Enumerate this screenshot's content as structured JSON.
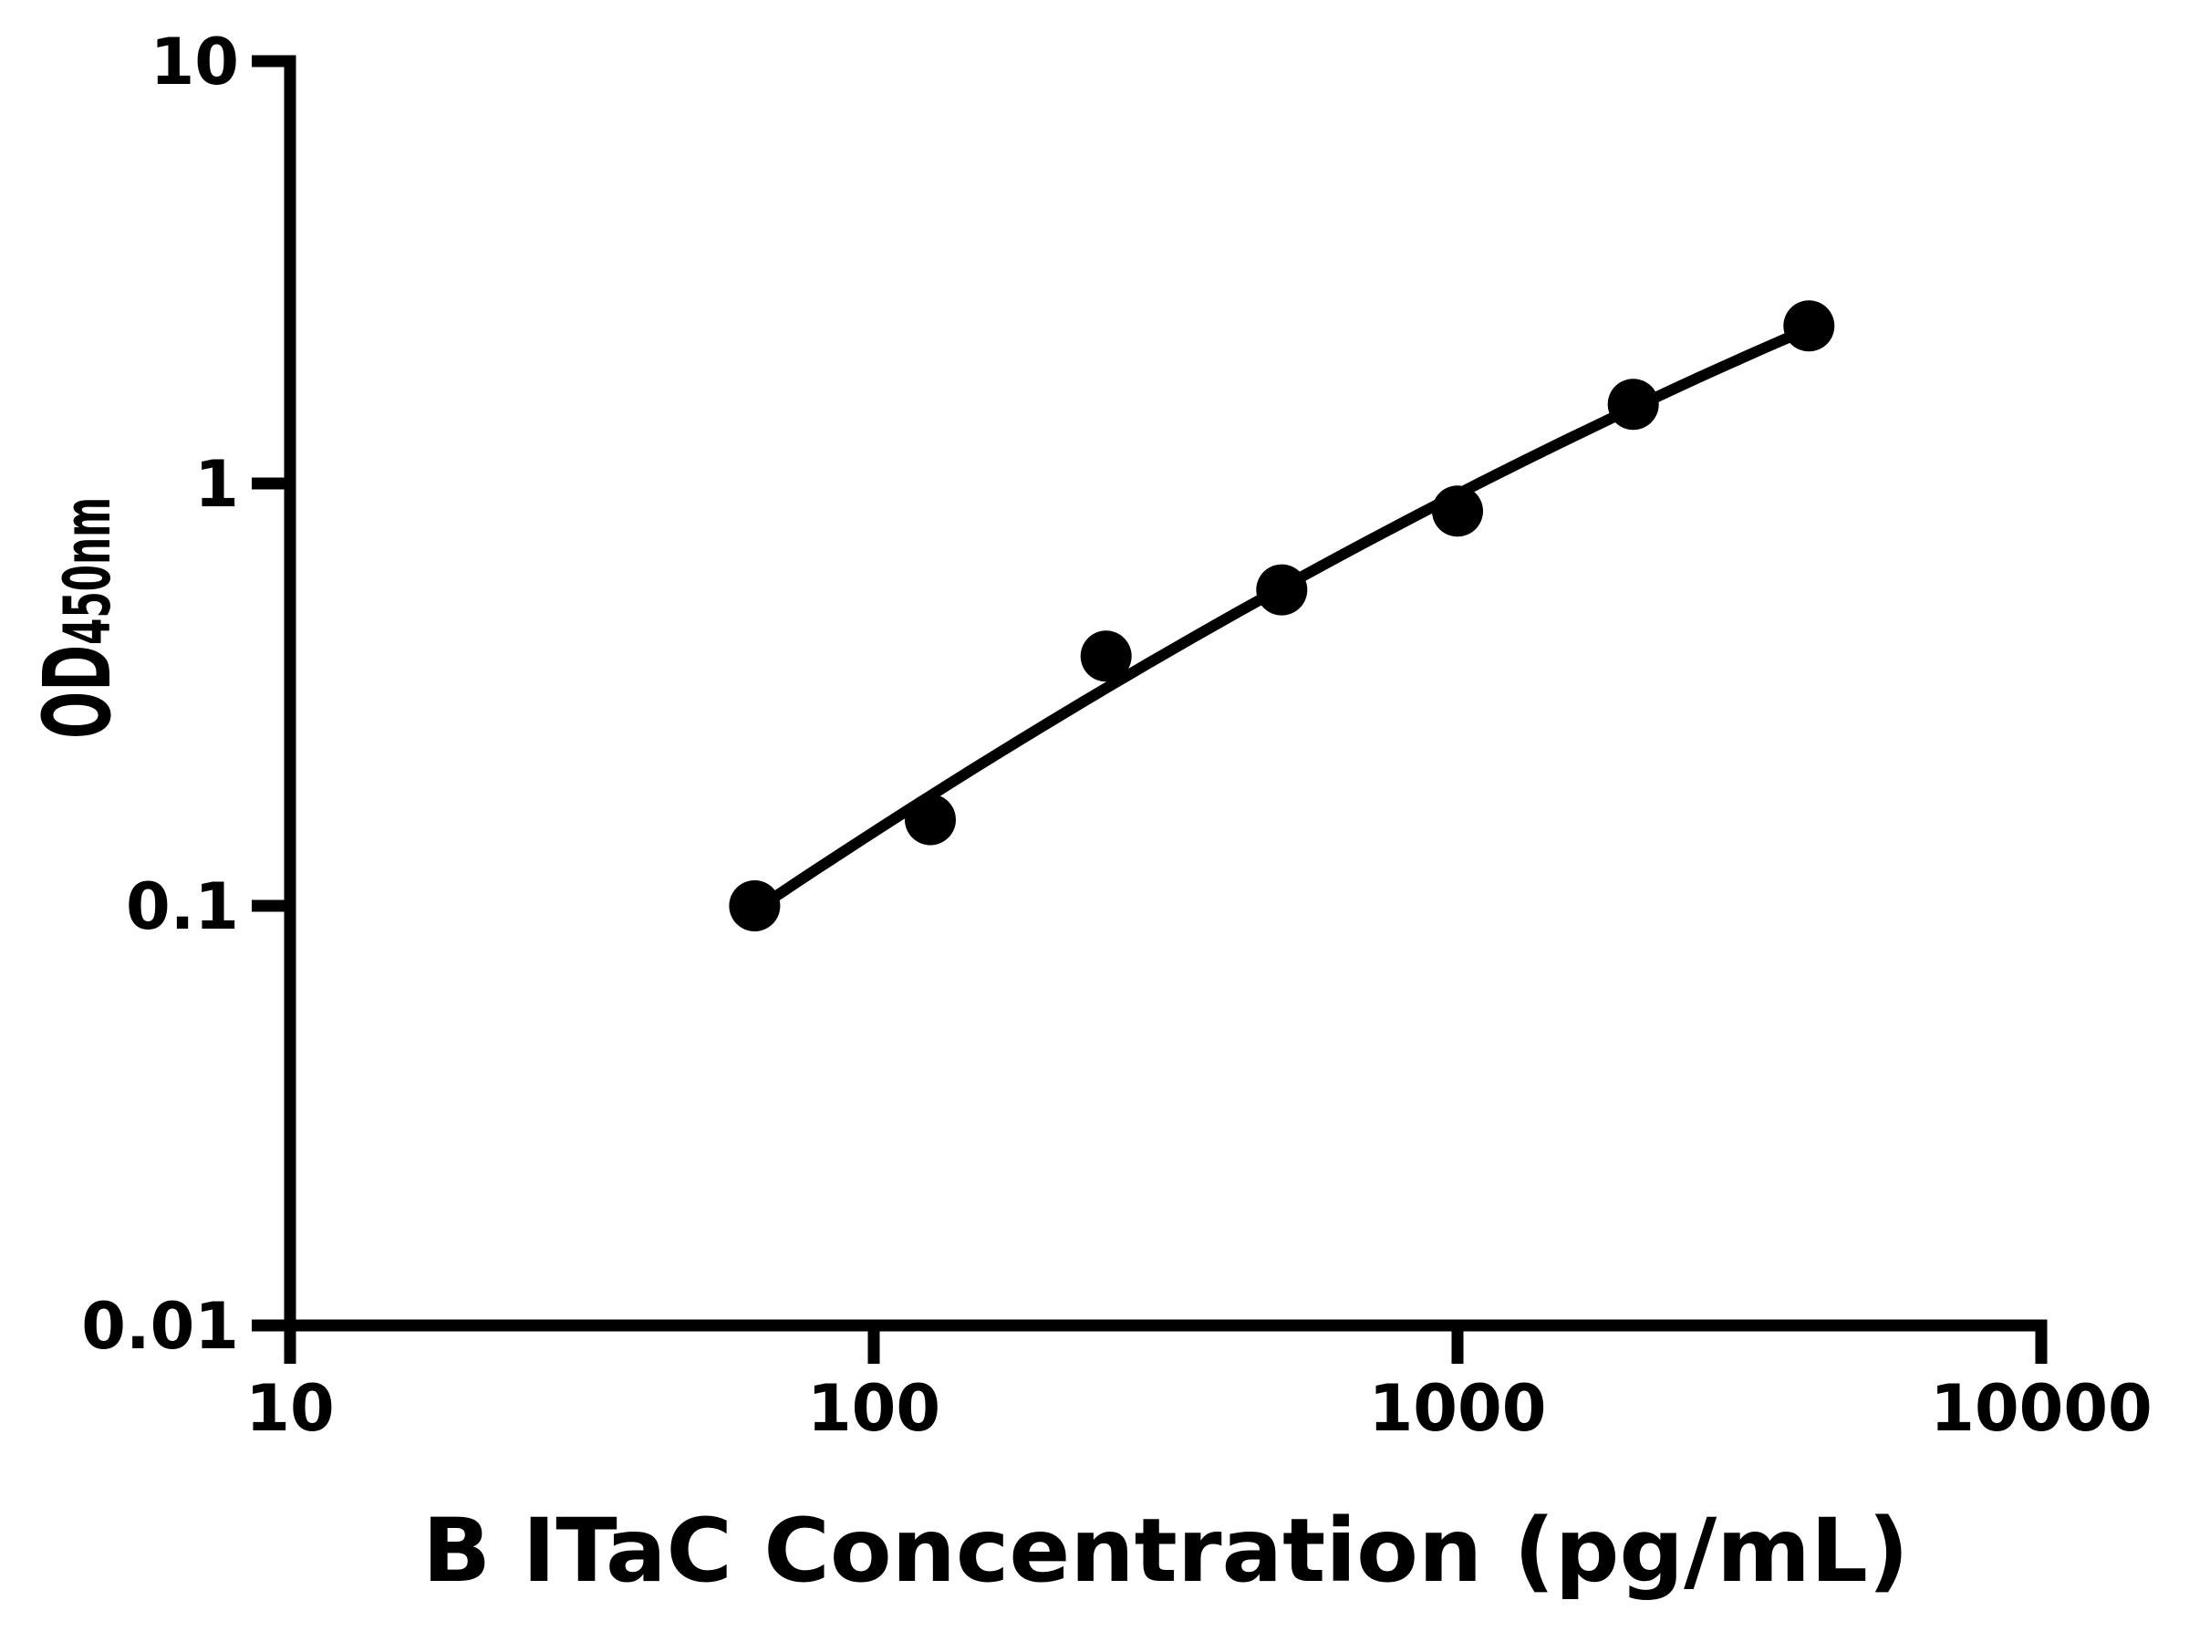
{
  "figure": {
    "background_color": "#ffffff",
    "ink_color": "#000000",
    "title": ""
  },
  "chart_data": {
    "type": "scatter",
    "title": "",
    "xlabel": "B ITaC Concentration (pg/mL)",
    "ylabel_main": "OD",
    "ylabel_sub": "450nm",
    "x_scale": "log",
    "y_scale": "log",
    "xlim": [
      10,
      10000
    ],
    "ylim": [
      0.01,
      10
    ],
    "x_ticks": [
      10,
      100,
      1000,
      10000
    ],
    "x_tick_labels": [
      "10",
      "100",
      "1000",
      "10000"
    ],
    "y_ticks": [
      0.01,
      0.1,
      1,
      10
    ],
    "y_tick_labels": [
      "0.01",
      "0.1",
      "1",
      "10"
    ],
    "grid": false,
    "legend": "none",
    "marker": {
      "shape": "circle",
      "color": "#000000",
      "radius_px": 28
    },
    "trendline": {
      "type": "quadratic_fit_loglog",
      "color": "#000000",
      "extends": "first_point_to_last_point"
    },
    "points": [
      {
        "x": 62.5,
        "y": 0.1
      },
      {
        "x": 125,
        "y": 0.16
      },
      {
        "x": 250,
        "y": 0.39
      },
      {
        "x": 500,
        "y": 0.56
      },
      {
        "x": 1000,
        "y": 0.86
      },
      {
        "x": 2000,
        "y": 1.54
      },
      {
        "x": 4000,
        "y": 2.36
      }
    ]
  }
}
